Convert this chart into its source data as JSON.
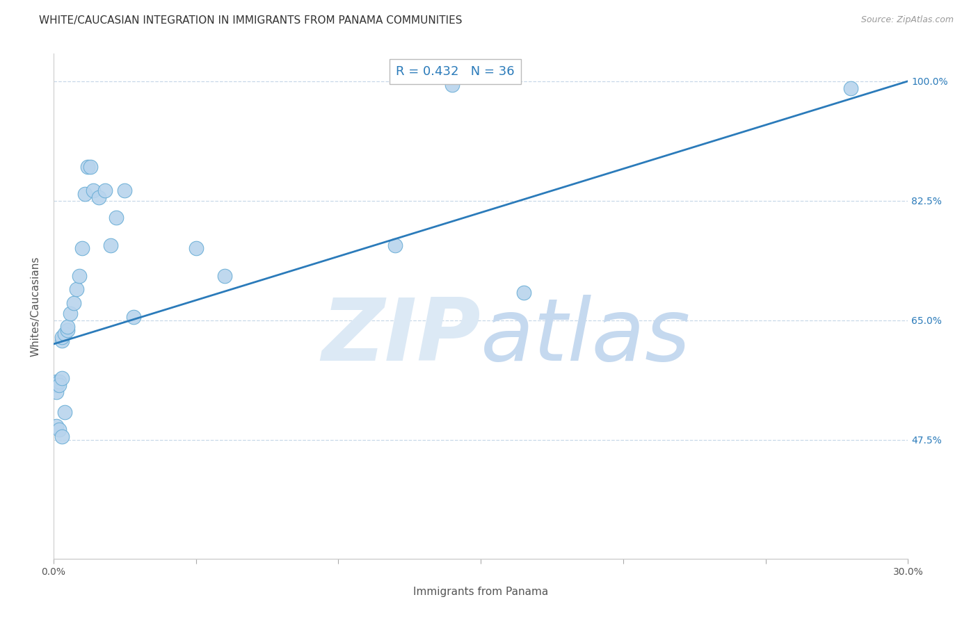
{
  "title": "WHITE/CAUCASIAN INTEGRATION IN IMMIGRANTS FROM PANAMA COMMUNITIES",
  "source": "Source: ZipAtlas.com",
  "xlabel": "Immigrants from Panama",
  "ylabel": "Whites/Caucasians",
  "r_value": 0.432,
  "n_value": 36,
  "xlim": [
    0.0,
    0.3
  ],
  "ylim": [
    0.3,
    1.04
  ],
  "yticks": [
    0.475,
    0.65,
    0.825,
    1.0
  ],
  "ytick_labels": [
    "47.5%",
    "65.0%",
    "82.5%",
    "100.0%"
  ],
  "xticks": [
    0.0,
    0.05,
    0.1,
    0.15,
    0.2,
    0.25,
    0.3
  ],
  "xtick_labels": [
    "0.0%",
    "",
    "",
    "",
    "",
    "",
    "30.0%"
  ],
  "scatter_color": "#b8d4ed",
  "scatter_edge_color": "#6aaed6",
  "line_color": "#2b7bba",
  "watermark_zip": "ZIP",
  "watermark_atlas": "atlas",
  "watermark_color_zip": "#dce9f5",
  "watermark_color_atlas": "#c5d9ef",
  "background_color": "#ffffff",
  "grid_color": "#c8d8e8",
  "title_fontsize": 11,
  "axis_label_fontsize": 11,
  "tick_fontsize": 10,
  "annotation_fontsize": 13,
  "points_x": [
    0.001,
    0.001,
    0.001,
    0.002,
    0.002,
    0.003,
    0.003,
    0.003,
    0.004,
    0.005,
    0.005,
    0.006,
    0.007,
    0.008,
    0.009,
    0.01,
    0.011,
    0.012,
    0.013,
    0.014,
    0.016,
    0.018,
    0.02,
    0.022,
    0.025,
    0.028,
    0.05,
    0.06,
    0.001,
    0.002,
    0.003,
    0.004,
    0.14,
    0.28,
    0.12,
    0.165
  ],
  "points_y": [
    0.56,
    0.555,
    0.545,
    0.56,
    0.555,
    0.565,
    0.62,
    0.625,
    0.63,
    0.635,
    0.64,
    0.66,
    0.675,
    0.695,
    0.715,
    0.755,
    0.835,
    0.875,
    0.875,
    0.84,
    0.83,
    0.84,
    0.76,
    0.8,
    0.84,
    0.655,
    0.755,
    0.715,
    0.495,
    0.49,
    0.48,
    0.515,
    0.995,
    0.99,
    0.76,
    0.69
  ],
  "line_x": [
    0.0,
    0.3
  ],
  "line_y": [
    0.615,
    1.0
  ]
}
